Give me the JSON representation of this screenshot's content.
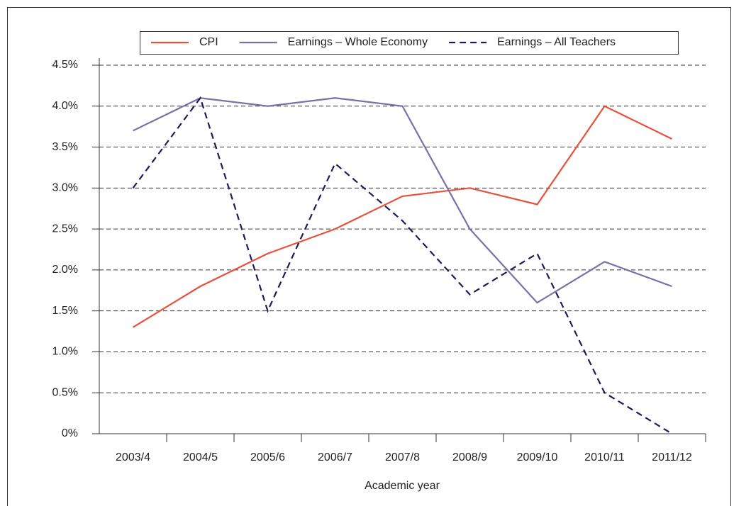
{
  "chart_data": {
    "type": "line",
    "x_label": "Academic year",
    "categories": [
      "2003/4",
      "2004/5",
      "2005/6",
      "2006/7",
      "2007/8",
      "2008/9",
      "2009/10",
      "2010/11",
      "2011/12"
    ],
    "series": [
      {
        "name": "CPI",
        "color": "#e8503a",
        "line_style": "solid",
        "values": [
          1.3,
          1.8,
          2.2,
          2.5,
          2.9,
          3.0,
          2.8,
          4.0,
          3.6
        ]
      },
      {
        "name": "Earnings – Whole Economy",
        "color": "#7b6fa8",
        "line_style": "solid",
        "values": [
          3.7,
          4.1,
          4.0,
          4.1,
          4.0,
          2.5,
          1.6,
          2.1,
          1.8
        ]
      },
      {
        "name": "Earnings – All Teachers",
        "color": "#1f1a5c",
        "line_style": "dashed",
        "values": [
          3.0,
          4.1,
          1.5,
          3.3,
          2.6,
          1.7,
          2.2,
          0.5,
          0.0
        ]
      }
    ],
    "ylim": [
      0,
      4.5
    ],
    "yticks": [
      {
        "value": 0,
        "label": "0%"
      },
      {
        "value": 0.5,
        "label": "0.5%"
      },
      {
        "value": 1.0,
        "label": "1.0%"
      },
      {
        "value": 1.5,
        "label": "1.5%"
      },
      {
        "value": 2.0,
        "label": "2.0%"
      },
      {
        "value": 2.5,
        "label": "2.5%"
      },
      {
        "value": 3.0,
        "label": "3.0%"
      },
      {
        "value": 3.5,
        "label": "3.5%"
      },
      {
        "value": 4.0,
        "label": "4.0%"
      },
      {
        "value": 4.5,
        "label": "4.5%"
      }
    ],
    "grid": true,
    "legend": "top"
  }
}
